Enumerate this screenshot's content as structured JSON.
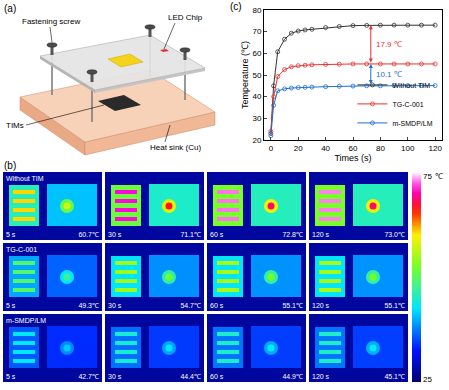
{
  "diagram": {
    "label": "(a)",
    "parts": {
      "screw": "Fastening screw",
      "chip": "LED Chip",
      "tim": "TIMs",
      "heat_sink": "Heat sink (Cu)"
    }
  },
  "thermal_images": {
    "label": "(b)",
    "rows": [
      {
        "name": "Without TIM",
        "frames": [
          {
            "time": "5 s",
            "max_temp": 60.7,
            "temp_label": "60.7℃"
          },
          {
            "time": "30 s",
            "max_temp": 71.1,
            "temp_label": "71.1℃"
          },
          {
            "time": "60 s",
            "max_temp": 72.8,
            "temp_label": "72.8℃"
          },
          {
            "time": "120 s",
            "max_temp": 73.0,
            "temp_label": "73.0℃"
          }
        ]
      },
      {
        "name": "TG-C-001",
        "frames": [
          {
            "time": "5 s",
            "max_temp": 49.3,
            "temp_label": "49.3℃"
          },
          {
            "time": "30 s",
            "max_temp": 54.7,
            "temp_label": "54.7℃"
          },
          {
            "time": "60 s",
            "max_temp": 55.1,
            "temp_label": "55.1℃"
          },
          {
            "time": "120 s",
            "max_temp": 55.1,
            "temp_label": "55.1℃"
          }
        ]
      },
      {
        "name": "m-SMDP/LM",
        "frames": [
          {
            "time": "5 s",
            "max_temp": 42.7,
            "temp_label": "42.7℃"
          },
          {
            "time": "30 s",
            "max_temp": 44.4,
            "temp_label": "44.4℃"
          },
          {
            "time": "60 s",
            "max_temp": 44.9,
            "temp_label": "44.9℃"
          },
          {
            "time": "120 s",
            "max_temp": 45.1,
            "temp_label": "45.1℃"
          }
        ]
      }
    ],
    "colorbar": {
      "range": [
        25,
        75
      ],
      "ticks": [
        25,
        75
      ],
      "unit": "℃"
    }
  },
  "chart_data": {
    "label": "(c)",
    "type": "line",
    "x_label": "Times (s)",
    "y_label": "Temperature (℃)",
    "x": [
      0,
      2,
      5,
      10,
      15,
      20,
      25,
      30,
      40,
      50,
      60,
      70,
      80,
      90,
      100,
      110,
      120
    ],
    "series": [
      {
        "name": "Without TIM",
        "color": "#333333",
        "marker": "circle-open",
        "values": [
          23,
          45,
          60.7,
          66.5,
          69.3,
          70.3,
          70.8,
          71.1,
          71.9,
          72.4,
          72.8,
          72.9,
          73.0,
          73.0,
          73.0,
          73.0,
          73.0
        ]
      },
      {
        "name": "TG-C-001",
        "color": "#e8312f",
        "marker": "circle-open",
        "values": [
          24,
          40,
          49.3,
          52.5,
          53.8,
          54.3,
          54.5,
          54.7,
          54.9,
          55.0,
          55.1,
          55.1,
          55.1,
          55.1,
          55.1,
          55.1,
          55.1
        ]
      },
      {
        "name": "m-SMDP/LM",
        "color": "#1f6fd1",
        "marker": "circle-open",
        "values": [
          22,
          36,
          42.7,
          43.6,
          44.0,
          44.2,
          44.3,
          44.4,
          44.6,
          44.8,
          44.9,
          45.0,
          45.0,
          45.1,
          45.1,
          45.1,
          45.1
        ]
      }
    ],
    "xlim": [
      -5,
      125
    ],
    "xticks": [
      0,
      20,
      40,
      60,
      80,
      100,
      120
    ],
    "ylim": [
      20,
      80
    ],
    "yticks": [
      20,
      30,
      40,
      50,
      60,
      70,
      80
    ],
    "grid": false,
    "legend": "lower right",
    "annotations": [
      {
        "text": "17.9 ℃",
        "between": [
          "Without TIM",
          "TG-C-001"
        ],
        "color": "#e8312f"
      },
      {
        "text": "10.1 ℃",
        "between": [
          "TG-C-001",
          "m-SMDP/LM"
        ],
        "color": "#1f6fd1"
      }
    ]
  }
}
